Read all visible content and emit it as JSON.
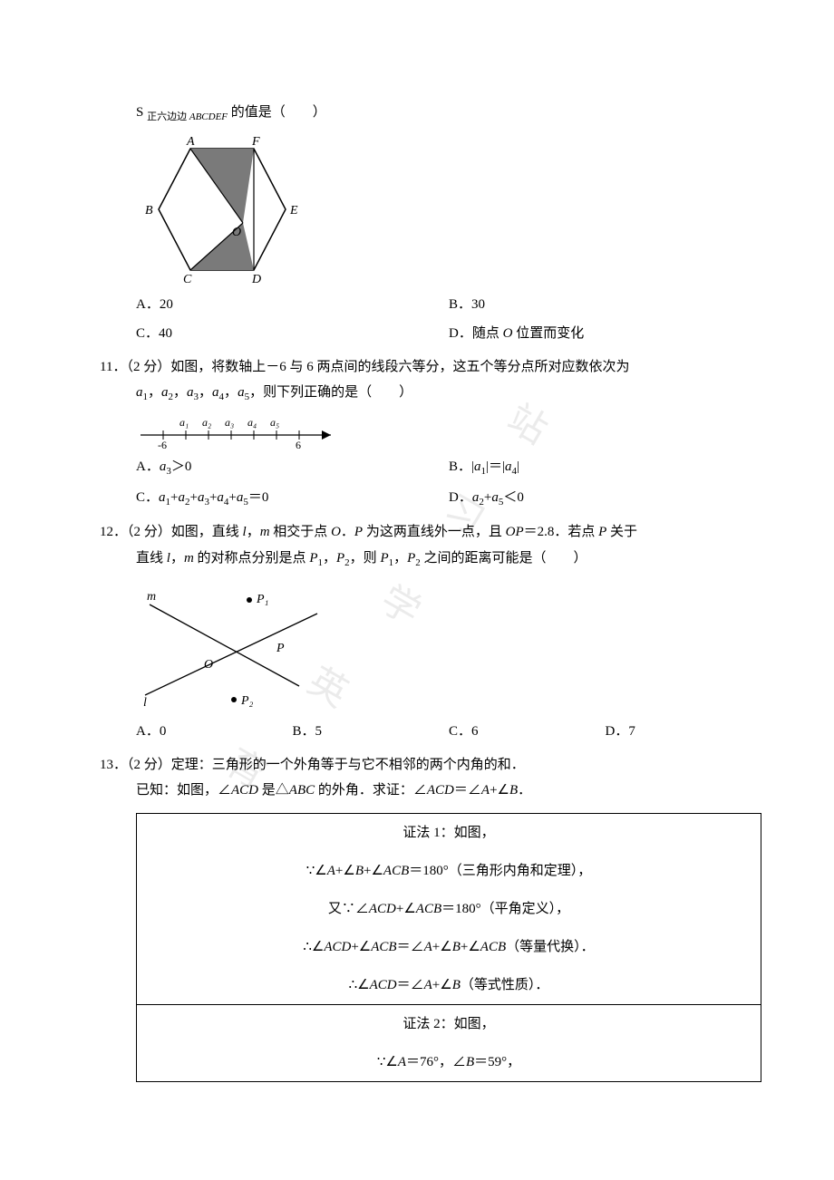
{
  "q10": {
    "stem": "S <span class=\"sub\">正六边边 <span class=\"italic\">ABCDEF</span></span> 的值是（　　）",
    "A": "A．20",
    "B": "B．30",
    "C": "C．40",
    "D": "D．随点 <span class=\"italic\">O</span> 位置而变化",
    "hexagon": {
      "labels": [
        "A",
        "F",
        "E",
        "D",
        "C",
        "B"
      ],
      "fill": "#808080",
      "stroke": "#000000"
    }
  },
  "q11": {
    "stem": "11．（2 分）如图，将数轴上－6 与 6 两点间的线段六等分，这五个等分点所对应数依次为",
    "stem2": "<span class=\"italic\">a</span><span class=\"sub\">1</span>，<span class=\"italic\">a</span><span class=\"sub\">2</span>，<span class=\"italic\">a</span><span class=\"sub\">3</span>，<span class=\"italic\">a</span><span class=\"sub\">4</span>，<span class=\"italic\">a</span><span class=\"sub\">5</span>，则下列正确的是（　　）",
    "A": "A．<span class=\"italic\">a</span><span class=\"sub\">3</span>＞0",
    "B": "B．|<span class=\"italic\">a</span><span class=\"sub\">1</span>|＝|<span class=\"italic\">a</span><span class=\"sub\">4</span>|",
    "C": "C．<span class=\"italic\">a</span><span class=\"sub\">1</span>+<span class=\"italic\">a</span><span class=\"sub\">2</span>+<span class=\"italic\">a</span><span class=\"sub\">3</span>+<span class=\"italic\">a</span><span class=\"sub\">4</span>+<span class=\"italic\">a</span><span class=\"sub\">5</span>＝0",
    "D": "D．<span class=\"italic\">a</span><span class=\"sub\">2</span>+<span class=\"italic\">a</span><span class=\"sub\">5</span>＜0",
    "axis": {
      "left": "-6",
      "right": "6",
      "labels": [
        "a₁",
        "a₂",
        "a₃",
        "a₄",
        "a₅"
      ]
    }
  },
  "q12": {
    "stem": "12．（2 分）如图，直线 <span class=\"italic\">l</span>，<span class=\"italic\">m</span> 相交于点 <span class=\"italic\">O</span>．<span class=\"italic\">P</span> 为这两直线外一点，且 <span class=\"italic\">OP</span>＝2.8．若点 <span class=\"italic\">P</span> 关于",
    "stem2": "直线 <span class=\"italic\">l</span>，<span class=\"italic\">m</span> 的对称点分别是点 <span class=\"italic\">P</span><span class=\"sub\">1</span>，<span class=\"italic\">P</span><span class=\"sub\">2</span>，则 <span class=\"italic\">P</span><span class=\"sub\">1</span>，<span class=\"italic\">P</span><span class=\"sub\">2</span> 之间的距离可能是（　　）",
    "A": "A．0",
    "B": "B．5",
    "C": "C．6",
    "D": "D．7",
    "labels": {
      "m": "m",
      "l": "l",
      "O": "O",
      "P": "P",
      "P1": "P₁",
      "P2": "P₂"
    }
  },
  "q13": {
    "stem": "13．（2 分）定理：三角形的一个外角等于与它不相邻的两个内角的和．",
    "stem2": "已知：如图，∠<span class=\"italic\">ACD</span> 是△<span class=\"italic\">ABC</span> 的外角．求证：∠<span class=\"italic\">ACD</span>＝∠<span class=\"italic\">A</span>+∠<span class=\"italic\">B</span>．",
    "proof1": {
      "title": "证法 1：如图，",
      "l1": "∵∠<span class=\"italic\">A</span>+∠<span class=\"italic\">B</span>+∠<span class=\"italic\">ACB</span>＝180°（三角形内角和定理），",
      "l2": "又∵∠<span class=\"italic\">ACD</span>+∠<span class=\"italic\">ACB</span>＝180°（平角定义），",
      "l3": "∴∠<span class=\"italic\">ACD</span>+∠<span class=\"italic\">ACB</span>＝∠<span class=\"italic\">A</span>+∠<span class=\"italic\">B</span>+∠<span class=\"italic\">ACB</span>（等量代换）．",
      "l4": "∴∠<span class=\"italic\">ACD</span>＝∠<span class=\"italic\">A</span>+∠<span class=\"italic\">B</span>（等式性质）．"
    },
    "proof2": {
      "title": "证法 2：如图，",
      "l1": "∵∠<span class=\"italic\">A</span>＝76°，∠<span class=\"italic\">B</span>＝59°，"
    }
  },
  "watermark": "育英学习站"
}
